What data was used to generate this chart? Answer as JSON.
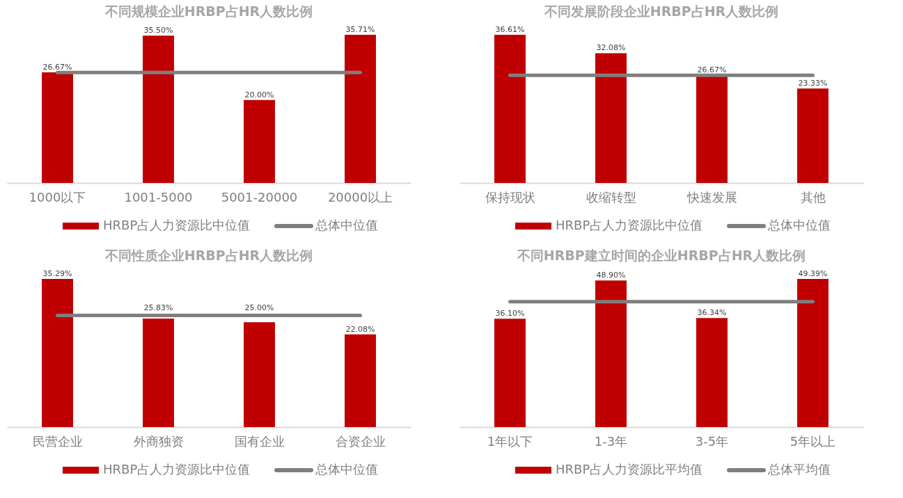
{
  "chart_data": [
    {
      "type": "bar",
      "title": "不同规模企业HRBP占HR人数比例",
      "categories": [
        "1000以下",
        "1001-5000",
        "5001-20000",
        "20000以上"
      ],
      "legend": "bottom",
      "grid": false,
      "tick_labels": "x",
      "series": [
        {
          "name": "HRBP占人力资源比中位值",
          "color": "#c00000",
          "values": [
            26.67,
            35.5,
            20.0,
            35.71
          ],
          "value_labels": [
            "26.67%",
            "35.50%",
            "20.00%",
            "35.71%"
          ]
        },
        {
          "name": "总体中位值",
          "type": "line",
          "color": "#7f7f7f",
          "values": [
            26.6,
            26.6,
            26.6,
            26.6
          ]
        }
      ]
    },
    {
      "type": "bar",
      "title": "不同发展阶段企业HRBP占HR人数比例",
      "categories": [
        "保持现状",
        "收缩转型",
        "快速发展",
        "其他"
      ],
      "legend": "bottom",
      "grid": false,
      "tick_labels": "x",
      "series": [
        {
          "name": "HRBP占人力资源比中位值",
          "color": "#c00000",
          "values": [
            36.61,
            32.08,
            26.67,
            23.33
          ],
          "value_labels": [
            "36.61%",
            "32.08%",
            "26.67%",
            "23.33%"
          ]
        },
        {
          "name": "总体中位值",
          "type": "line",
          "color": "#7f7f7f",
          "values": [
            26.6,
            26.6,
            26.6,
            26.6
          ]
        }
      ]
    },
    {
      "type": "bar",
      "title": "不同性质企业HRBP占HR人数比例",
      "categories": [
        "民营企业",
        "外商独资",
        "国有企业",
        "合资企业"
      ],
      "legend": "bottom",
      "grid": false,
      "tick_labels": "x",
      "series": [
        {
          "name": "HRBP占人力资源比中位值",
          "color": "#c00000",
          "values": [
            35.29,
            25.83,
            25.0,
            22.08
          ],
          "value_labels": [
            "35.29%",
            "25.83%",
            "25.00%",
            "22.08%"
          ]
        },
        {
          "name": "总体中位值",
          "type": "line",
          "color": "#7f7f7f",
          "values": [
            26.6,
            26.6,
            26.6,
            26.6
          ]
        }
      ]
    },
    {
      "type": "bar",
      "title": "不同HRBP建立时间的企业HRBP占HR人数比例",
      "categories": [
        "1年以下",
        "1-3年",
        "3-5年",
        "5年以上"
      ],
      "legend": "bottom",
      "grid": false,
      "tick_labels": "x",
      "series": [
        {
          "name": "HRBP占人力资源比平均值",
          "color": "#c00000",
          "values": [
            36.1,
            48.9,
            36.34,
            49.39
          ],
          "value_labels": [
            "36.10%",
            "48.90%",
            "36.34%",
            "49.39%"
          ]
        },
        {
          "name": "总体平均值",
          "type": "line",
          "color": "#7f7f7f",
          "values": [
            41.8,
            41.8,
            41.8,
            41.8
          ]
        }
      ]
    }
  ]
}
